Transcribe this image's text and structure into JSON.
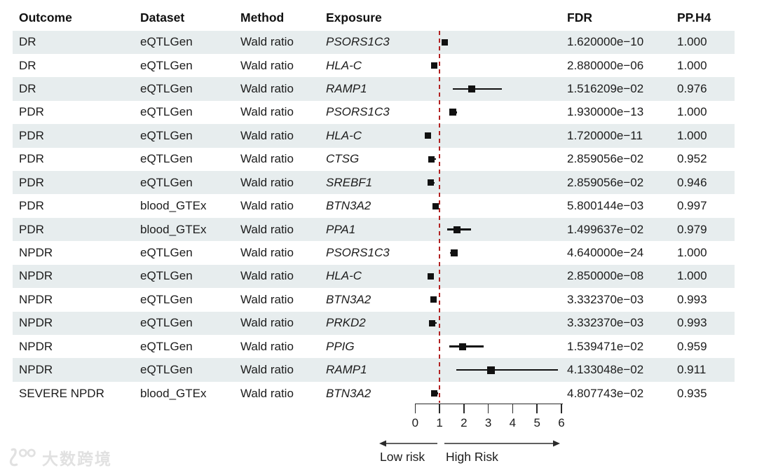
{
  "table": {
    "headers": {
      "outcome": "Outcome",
      "dataset": "Dataset",
      "method": "Method",
      "exposure": "Exposure",
      "fdr": "FDR",
      "pph4": "PP.H4"
    }
  },
  "chart_data": {
    "type": "scatter",
    "variant": "forest-plot",
    "title": "",
    "xlabel": "",
    "xlim": [
      0,
      6
    ],
    "x_ticks": [
      "0",
      "1",
      "2",
      "3",
      "4",
      "5",
      "6"
    ],
    "reference_line_x": 1,
    "grid": false,
    "arrow_low_label": "Low risk",
    "arrow_high_label": "High Risk",
    "rows": [
      {
        "outcome": "DR",
        "dataset": "eQTLGen",
        "method": "Wald ratio",
        "exposure": "PSORS1C3",
        "or": 1.22,
        "ci_low": 1.1,
        "ci_high": 1.34,
        "fdr": "1.620000e−10",
        "pph4": "1.000",
        "marker_size": 9
      },
      {
        "outcome": "DR",
        "dataset": "eQTLGen",
        "method": "Wald ratio",
        "exposure": "HLA-C",
        "or": 0.79,
        "ci_low": 0.71,
        "ci_high": 0.87,
        "fdr": "2.880000e−06",
        "pph4": "1.000",
        "marker_size": 9
      },
      {
        "outcome": "DR",
        "dataset": "eQTLGen",
        "method": "Wald ratio",
        "exposure": "RAMP1",
        "or": 2.33,
        "ci_low": 1.53,
        "ci_high": 3.55,
        "fdr": "1.516209e−02",
        "pph4": "0.976",
        "marker_size": 10
      },
      {
        "outcome": "PDR",
        "dataset": "eQTLGen",
        "method": "Wald ratio",
        "exposure": "PSORS1C3",
        "or": 1.55,
        "ci_low": 1.4,
        "ci_high": 1.71,
        "fdr": "1.930000e−13",
        "pph4": "1.000",
        "marker_size": 10
      },
      {
        "outcome": "PDR",
        "dataset": "eQTLGen",
        "method": "Wald ratio",
        "exposure": "HLA-C",
        "or": 0.52,
        "ci_low": 0.46,
        "ci_high": 0.6,
        "fdr": "1.720000e−11",
        "pph4": "1.000",
        "marker_size": 9
      },
      {
        "outcome": "PDR",
        "dataset": "eQTLGen",
        "method": "Wald ratio",
        "exposure": "CTSG",
        "or": 0.68,
        "ci_low": 0.54,
        "ci_high": 0.86,
        "fdr": "2.859056e−02",
        "pph4": "0.952",
        "marker_size": 9
      },
      {
        "outcome": "PDR",
        "dataset": "eQTLGen",
        "method": "Wald ratio",
        "exposure": "SREBF1",
        "or": 0.63,
        "ci_low": 0.51,
        "ci_high": 0.79,
        "fdr": "2.859056e−02",
        "pph4": "0.946",
        "marker_size": 9
      },
      {
        "outcome": "PDR",
        "dataset": "blood_GTEx",
        "method": "Wald ratio",
        "exposure": "BTN3A2",
        "or": 0.84,
        "ci_low": 0.74,
        "ci_high": 0.94,
        "fdr": "5.800144e−03",
        "pph4": "0.997",
        "marker_size": 9
      },
      {
        "outcome": "PDR",
        "dataset": "blood_GTEx",
        "method": "Wald ratio",
        "exposure": "PPA1",
        "or": 1.73,
        "ci_low": 1.31,
        "ci_high": 2.29,
        "fdr": "1.499637e−02",
        "pph4": "0.979",
        "marker_size": 10
      },
      {
        "outcome": "NPDR",
        "dataset": "eQTLGen",
        "method": "Wald ratio",
        "exposure": "PSORS1C3",
        "or": 1.59,
        "ci_low": 1.44,
        "ci_high": 1.75,
        "fdr": "4.640000e−24",
        "pph4": "1.000",
        "marker_size": 10
      },
      {
        "outcome": "NPDR",
        "dataset": "eQTLGen",
        "method": "Wald ratio",
        "exposure": "HLA-C",
        "or": 0.64,
        "ci_low": 0.56,
        "ci_high": 0.73,
        "fdr": "2.850000e−08",
        "pph4": "1.000",
        "marker_size": 9
      },
      {
        "outcome": "NPDR",
        "dataset": "eQTLGen",
        "method": "Wald ratio",
        "exposure": "BTN3A2",
        "or": 0.76,
        "ci_low": 0.67,
        "ci_high": 0.86,
        "fdr": "3.332370e−03",
        "pph4": "0.993",
        "marker_size": 9
      },
      {
        "outcome": "NPDR",
        "dataset": "eQTLGen",
        "method": "Wald ratio",
        "exposure": "PRKD2",
        "or": 0.71,
        "ci_low": 0.58,
        "ci_high": 0.87,
        "fdr": "3.332370e−03",
        "pph4": "0.993",
        "marker_size": 9
      },
      {
        "outcome": "NPDR",
        "dataset": "eQTLGen",
        "method": "Wald ratio",
        "exposure": "PPIG",
        "or": 1.96,
        "ci_low": 1.4,
        "ci_high": 2.82,
        "fdr": "1.539471e−02",
        "pph4": "0.959",
        "marker_size": 10
      },
      {
        "outcome": "NPDR",
        "dataset": "eQTLGen",
        "method": "Wald ratio",
        "exposure": "RAMP1",
        "or": 3.11,
        "ci_low": 1.68,
        "ci_high": 5.85,
        "fdr": "4.133048e−02",
        "pph4": "0.911",
        "marker_size": 11
      },
      {
        "outcome": "SEVERE NPDR",
        "dataset": "blood_GTEx",
        "method": "Wald ratio",
        "exposure": "BTN3A2",
        "or": 0.79,
        "ci_low": 0.66,
        "ci_high": 0.93,
        "fdr": "4.807743e−02",
        "pph4": "0.935",
        "marker_size": 9
      }
    ]
  },
  "watermark": {
    "logo": "100",
    "text": "大数跨境"
  },
  "colors": {
    "row_shade": "#e7edee",
    "reference_line": "#b22222",
    "marker": "#111111",
    "text": "#1c1c1c"
  }
}
